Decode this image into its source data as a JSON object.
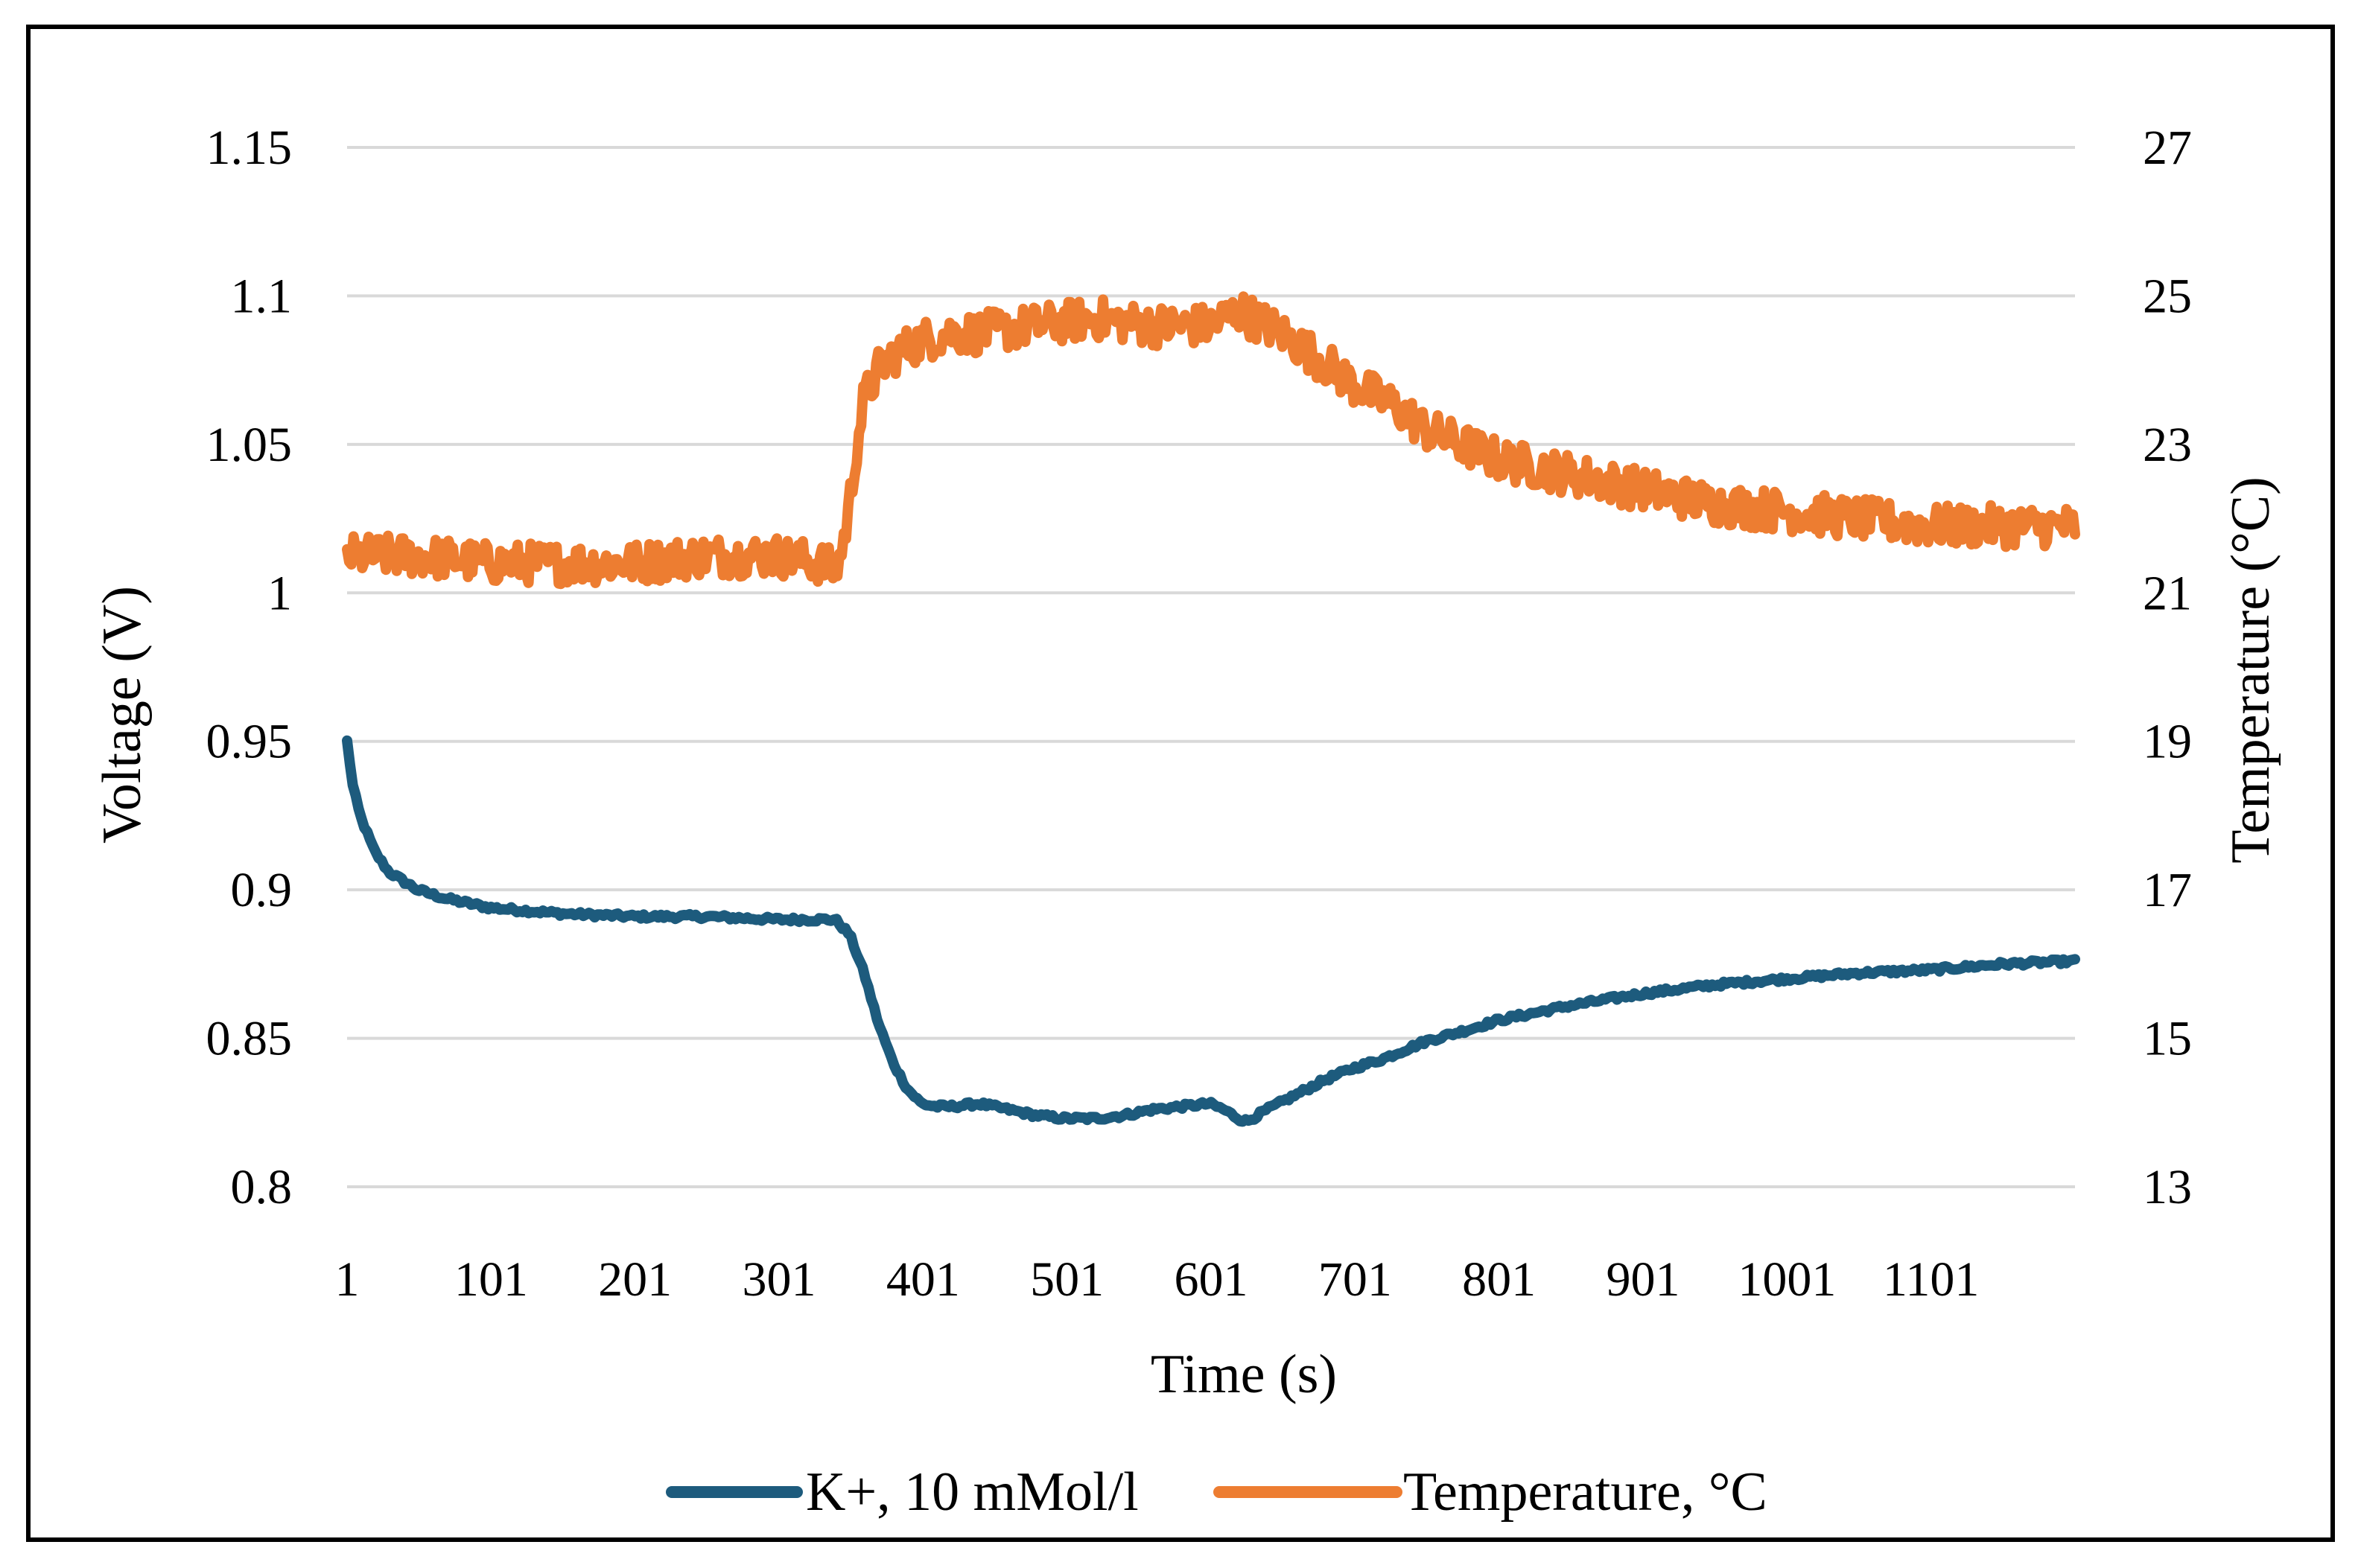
{
  "chart_data": {
    "type": "line",
    "title": "",
    "xlabel": "Time (s)",
    "ylabel": "Voltage (V)",
    "y2label": "Temperature (°C)",
    "x_ticks": [
      "1",
      "101",
      "201",
      "301",
      "401",
      "501",
      "601",
      "701",
      "801",
      "901",
      "1001",
      "1101"
    ],
    "xlim": [
      1,
      1201
    ],
    "ylim": [
      0.8,
      1.15
    ],
    "y_ticks": [
      "0.8",
      "0.85",
      "0.9",
      "0.95",
      "1",
      "1.05",
      "1.1",
      "1.15"
    ],
    "y_tick_values": [
      0.8,
      0.85,
      0.9,
      0.95,
      1.0,
      1.05,
      1.1,
      1.15
    ],
    "y2lim": [
      13,
      27
    ],
    "y2_ticks": [
      "13",
      "15",
      "17",
      "19",
      "21",
      "23",
      "25",
      "27"
    ],
    "y2_tick_values": [
      13,
      15,
      17,
      19,
      21,
      23,
      25,
      27
    ],
    "grid": true,
    "legend_position": "bottom",
    "series": [
      {
        "name": "K+, 10 mMol/l",
        "axis": "left",
        "color": "#1d5b7d",
        "noise": 0.0008,
        "x": [
          1,
          5,
          10,
          20,
          30,
          50,
          70,
          100,
          150,
          200,
          250,
          300,
          340,
          350,
          360,
          370,
          380,
          390,
          400,
          410,
          420,
          440,
          460,
          480,
          500,
          520,
          540,
          560,
          580,
          600,
          610,
          620,
          626,
          640,
          660,
          680,
          700,
          720,
          750,
          780,
          800,
          850,
          900,
          950,
          1000,
          1050,
          1100,
          1150,
          1201
        ],
        "values": [
          0.95,
          0.935,
          0.925,
          0.913,
          0.906,
          0.9,
          0.897,
          0.894,
          0.892,
          0.891,
          0.891,
          0.89,
          0.89,
          0.885,
          0.872,
          0.855,
          0.842,
          0.833,
          0.828,
          0.827,
          0.827,
          0.828,
          0.826,
          0.824,
          0.823,
          0.823,
          0.824,
          0.826,
          0.827,
          0.828,
          0.826,
          0.823,
          0.822,
          0.826,
          0.831,
          0.836,
          0.84,
          0.843,
          0.849,
          0.853,
          0.856,
          0.861,
          0.865,
          0.868,
          0.87,
          0.872,
          0.873,
          0.875,
          0.876
        ]
      },
      {
        "name": "Temperature, °C",
        "axis": "right",
        "color": "#ed7d31",
        "noise": 0.28,
        "x": [
          1,
          50,
          100,
          150,
          200,
          250,
          300,
          330,
          340,
          345,
          350,
          355,
          360,
          370,
          380,
          400,
          420,
          440,
          480,
          520,
          560,
          600,
          610,
          620,
          630,
          650,
          680,
          700,
          730,
          750,
          800,
          850,
          900,
          950,
          1000,
          1050,
          1100,
          1150,
          1201
        ],
        "values": [
          21.5,
          21.5,
          21.4,
          21.4,
          21.4,
          21.5,
          21.5,
          21.4,
          21.3,
          21.6,
          22.2,
          23.0,
          23.6,
          24.0,
          24.2,
          24.4,
          24.5,
          24.5,
          24.6,
          24.7,
          24.6,
          24.6,
          24.7,
          24.8,
          24.7,
          24.5,
          24.1,
          23.8,
          23.5,
          23.2,
          22.8,
          22.6,
          22.4,
          22.2,
          22.1,
          22.0,
          21.9,
          21.9,
          21.9
        ]
      }
    ]
  }
}
